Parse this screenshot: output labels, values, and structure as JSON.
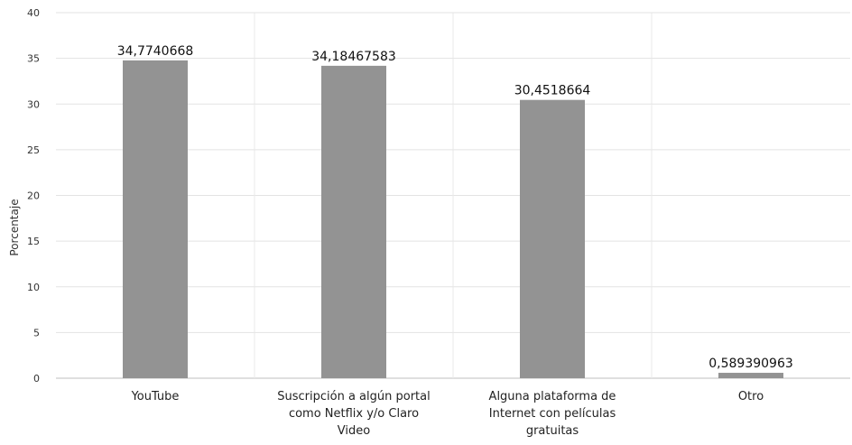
{
  "chart_data": {
    "type": "bar",
    "categories": [
      [
        "YouTube"
      ],
      [
        "Suscripción a algún portal",
        "como Netflix y/o Claro",
        "Video"
      ],
      [
        "Alguna plataforma de",
        "Internet con películas",
        "gratuitas"
      ],
      [
        "Otro"
      ]
    ],
    "values": [
      34.7740668,
      34.18467583,
      30.4518664,
      0.589390963
    ],
    "data_labels": [
      "34,7740668",
      "34,18467583",
      "30,4518664",
      "0,589390963"
    ],
    "title": "",
    "xlabel": "",
    "ylabel": "Porcentaje",
    "ylim": [
      0,
      40
    ],
    "yticks": [
      0,
      5,
      10,
      15,
      20,
      25,
      30,
      35,
      40
    ],
    "grid": true,
    "legend": "none",
    "colors": {
      "bar": "#939393"
    }
  }
}
